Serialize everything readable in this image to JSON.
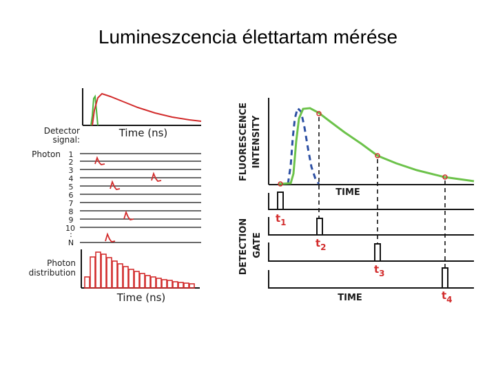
{
  "title": "Lumineszcencia élettartam mérése",
  "left_panel": {
    "detector_signal_label": [
      "Detector",
      "signal:"
    ],
    "time_label_top": "Time (ns)",
    "photon_label": "Photon",
    "photon_numbers": [
      "1",
      "2",
      "3",
      "4",
      "5",
      "6",
      "7",
      "8",
      "9",
      "10",
      ":",
      "N"
    ],
    "photon_distribution_label": [
      "Photon",
      "distribution"
    ],
    "time_label_bottom": "Time (ns)"
  },
  "right_panel": {
    "y_label_1": "FLUORESCENCE",
    "y_label_2": "INTENSITY",
    "time_label_upper": "TIME",
    "detection_label_1": "DETECTION",
    "detection_label_2": "GATE",
    "gate_labels": [
      {
        "main": "t",
        "sub": "1"
      },
      {
        "main": "t",
        "sub": "2"
      },
      {
        "main": "t",
        "sub": "3"
      },
      {
        "main": "t",
        "sub": "4"
      }
    ],
    "time_label_lower": "TIME"
  },
  "colors": {
    "decay_curve": "#d22b2b",
    "excitation": "#4bb33a",
    "fluorescence": "#6cc24a",
    "excitation_pulse": "#2c4fa3",
    "frame": "#111111"
  }
}
